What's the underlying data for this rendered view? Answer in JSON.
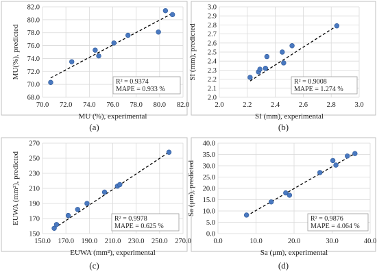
{
  "chart_data": [
    {
      "type": "scatter",
      "panel_label": "(a)",
      "xlabel": "MU (%), experimental",
      "ylabel": "MU(%), predicted",
      "xlim": [
        70,
        82
      ],
      "ylim": [
        68,
        82
      ],
      "xticks": [
        "70.0",
        "72.0",
        "74.0",
        "76.0",
        "78.0",
        "80.0",
        "82.0"
      ],
      "yticks": [
        "68.0",
        "70.0",
        "72.0",
        "74.0",
        "76.0",
        "78.0",
        "80.0",
        "82.0"
      ],
      "grid": true,
      "points": [
        [
          70.7,
          70.3
        ],
        [
          72.5,
          73.5
        ],
        [
          74.5,
          75.3
        ],
        [
          74.8,
          74.4
        ],
        [
          76.1,
          76.4
        ],
        [
          77.3,
          77.6
        ],
        [
          79.9,
          78.1
        ],
        [
          80.5,
          81.4
        ],
        [
          81.1,
          80.8
        ]
      ],
      "trendline": [
        [
          70.7,
          71.0
        ],
        [
          81.1,
          81.0
        ]
      ],
      "annotation": [
        "R² = 0.9374",
        "MAPE = 0.933 %"
      ]
    },
    {
      "type": "scatter",
      "panel_label": "(b)",
      "xlabel": "SI (mm), experimental",
      "ylabel": "SI (mm), predicted",
      "xlim": [
        2.0,
        3.0
      ],
      "ylim": [
        2.0,
        3.0
      ],
      "xticks": [
        "2.0",
        "2.2",
        "2.4",
        "2.6",
        "2.8",
        "3.0"
      ],
      "yticks": [
        "2.0",
        "2.1",
        "2.2",
        "2.3",
        "2.4",
        "2.5",
        "2.6",
        "2.7",
        "2.8",
        "2.9",
        "3.0"
      ],
      "grid": true,
      "points": [
        [
          2.22,
          2.22
        ],
        [
          2.28,
          2.28
        ],
        [
          2.29,
          2.31
        ],
        [
          2.33,
          2.32
        ],
        [
          2.34,
          2.45
        ],
        [
          2.45,
          2.5
        ],
        [
          2.46,
          2.38
        ],
        [
          2.52,
          2.57
        ],
        [
          2.84,
          2.79
        ]
      ],
      "trendline": [
        [
          2.22,
          2.18
        ],
        [
          2.84,
          2.79
        ]
      ],
      "annotation": [
        "R² = 0.9008",
        "MAPE = 1.274 %"
      ]
    },
    {
      "type": "scatter",
      "panel_label": "(c)",
      "xlabel": "EUWA (mm²), experimental",
      "ylabel": "EUWA (mm²), predicted",
      "xlim": [
        150,
        270
      ],
      "ylim": [
        150,
        270
      ],
      "xticks": [
        "150.0",
        "170.0",
        "190.0",
        "210.0",
        "230.0",
        "250.0",
        "270.0"
      ],
      "yticks": [
        "150",
        "170",
        "190",
        "210",
        "230",
        "250",
        "270"
      ],
      "grid": true,
      "points": [
        [
          160,
          157
        ],
        [
          162,
          162
        ],
        [
          172,
          174
        ],
        [
          180,
          182
        ],
        [
          188,
          190
        ],
        [
          203,
          205
        ],
        [
          214,
          213
        ],
        [
          216,
          215
        ],
        [
          258,
          258
        ]
      ],
      "trendline": [
        [
          160,
          157
        ],
        [
          258,
          258
        ]
      ],
      "annotation": [
        "R² = 0.9978",
        "MAPE = 0.625 %"
      ]
    },
    {
      "type": "scatter",
      "panel_label": "(d)",
      "xlabel": "Sa (μm), experimental",
      "ylabel": "Sa (μm), predicted",
      "xlim": [
        0,
        40
      ],
      "ylim": [
        0,
        40
      ],
      "xticks": [
        "0.0",
        "10.0",
        "20.0",
        "30.0",
        "40.0"
      ],
      "yticks": [
        "0.0",
        "5.0",
        "10.0",
        "15.0",
        "20.0",
        "25.0",
        "30.0",
        "35.0",
        "40.0"
      ],
      "grid": true,
      "points": [
        [
          7.5,
          8.2
        ],
        [
          14.0,
          14.0
        ],
        [
          17.8,
          18.0
        ],
        [
          18.8,
          17.0
        ],
        [
          26.8,
          27.0
        ],
        [
          30.2,
          32.3
        ],
        [
          31.0,
          30.3
        ],
        [
          34.0,
          34.3
        ],
        [
          36.0,
          35.4
        ]
      ],
      "trendline": [
        [
          7.5,
          7.8
        ],
        [
          36.0,
          35.4
        ]
      ],
      "annotation": [
        "R² = 0.9876",
        "MAPE = 4.064 %"
      ]
    }
  ],
  "colors": {
    "point": "#4a79c0",
    "trendline": "#000000",
    "grid": "#d9d9d9",
    "frame": "#bfbfbf",
    "text": "#222222"
  }
}
